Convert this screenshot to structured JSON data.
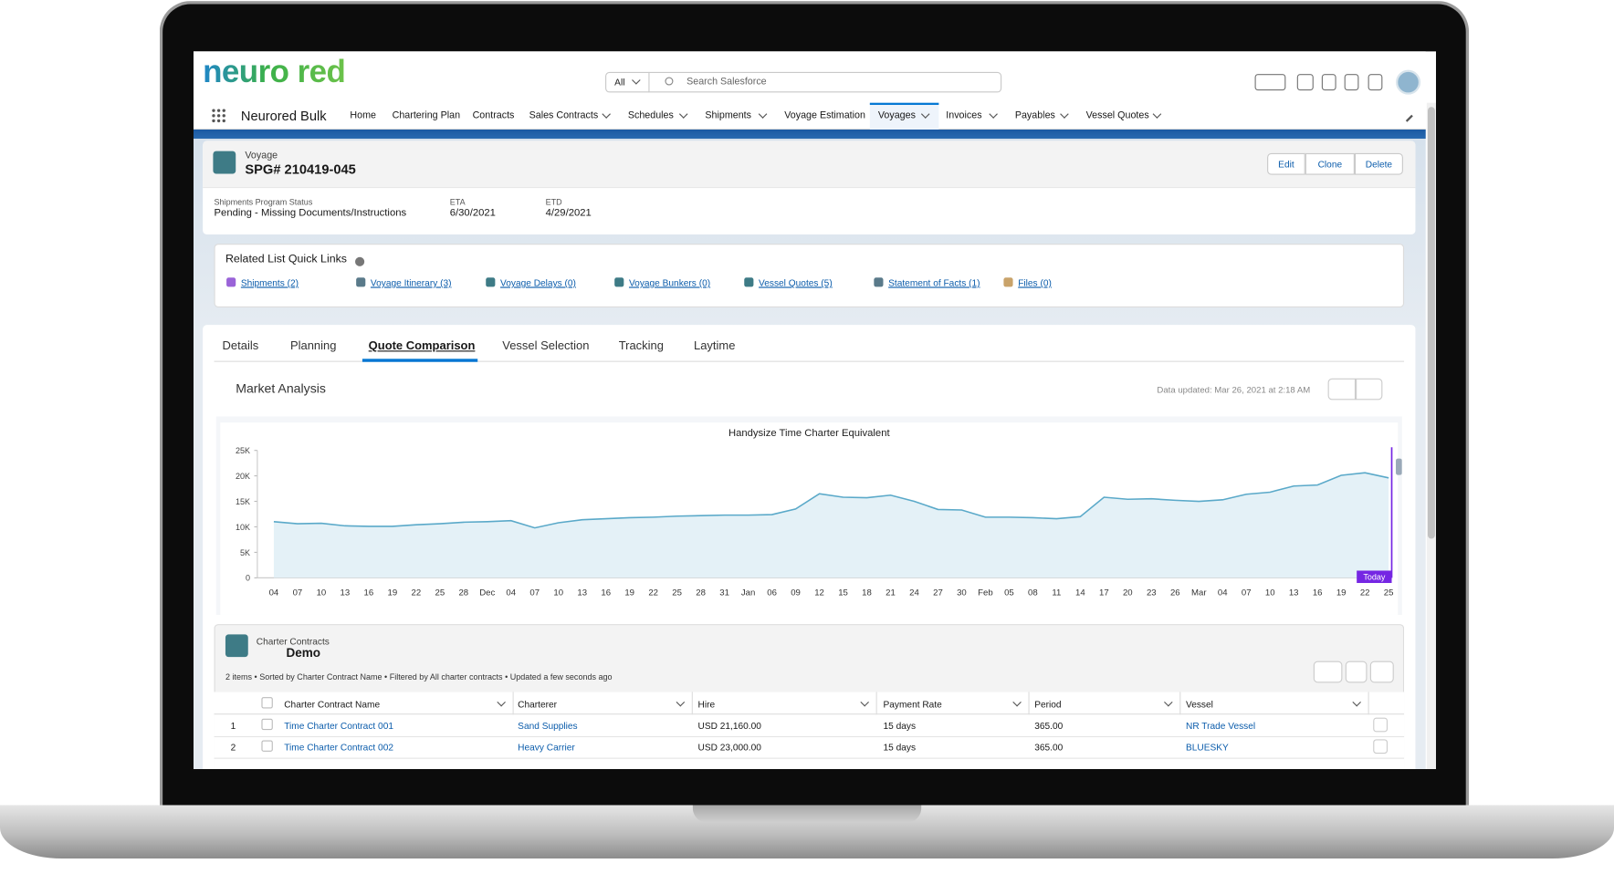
{
  "header": {
    "logo": "neuro red",
    "search_scope": "All",
    "search_placeholder": "Search Salesforce"
  },
  "nav": {
    "app_name": "Neurored Bulk",
    "items": [
      "Home",
      "Chartering Plan",
      "Contracts",
      "Sales Contracts",
      "Schedules",
      "Shipments",
      "Voyage Estimation",
      "Voyages",
      "Invoices",
      "Payables",
      "Vessel Quotes"
    ]
  },
  "record": {
    "object": "Voyage",
    "name": "SPG# 210419-045",
    "actions": [
      "Edit",
      "Clone",
      "Delete"
    ],
    "fields": [
      {
        "label": "Shipments Program Status",
        "value": "Pending - Missing Documents/Instructions"
      },
      {
        "label": "ETA",
        "value": "6/30/2021"
      },
      {
        "label": "ETD",
        "value": "4/29/2021"
      }
    ]
  },
  "quick_links": {
    "title": "Related List Quick Links",
    "links": [
      "Shipments (2)",
      "Voyage Itinerary (3)",
      "Voyage Delays (0)",
      "Voyage Bunkers (0)",
      "Vessel Quotes (5)",
      "Statement of Facts (1)",
      "Files (0)"
    ]
  },
  "tabs": [
    "Details",
    "Planning",
    "Quote Comparison",
    "Vessel Selection",
    "Tracking",
    "Laytime"
  ],
  "market_analysis": {
    "title": "Market Analysis",
    "data_updated": "Data updated: Mar 26, 2021 at 2:18 AM"
  },
  "chart_data": {
    "type": "line",
    "title": "Handysize Time Charter Equivalent",
    "categories": [
      "04",
      "07",
      "10",
      "13",
      "16",
      "19",
      "22",
      "25",
      "28",
      "Dec",
      "04",
      "07",
      "10",
      "13",
      "16",
      "19",
      "22",
      "25",
      "28",
      "31",
      "Jan",
      "06",
      "09",
      "12",
      "15",
      "18",
      "21",
      "24",
      "27",
      "30",
      "Feb",
      "05",
      "08",
      "11",
      "14",
      "17",
      "20",
      "23",
      "26",
      "Mar",
      "04",
      "07",
      "10",
      "13",
      "16",
      "19",
      "22",
      "25"
    ],
    "values": [
      11000,
      10600,
      10700,
      10200,
      10100,
      10100,
      10400,
      10600,
      10900,
      11000,
      11200,
      9800,
      10800,
      11400,
      11600,
      11800,
      11900,
      12100,
      12200,
      12300,
      12300,
      12400,
      13500,
      16500,
      15800,
      15700,
      16200,
      15000,
      13400,
      13300,
      11900,
      11900,
      11800,
      11600,
      12000,
      15800,
      15400,
      15500,
      15200,
      15000,
      15300,
      16400,
      16800,
      18000,
      18200,
      20100,
      20600,
      19600
    ],
    "color": "#5aa9c9",
    "fill": "#e4f1f7",
    "ylim": [
      0,
      25000
    ],
    "yticks": [
      0,
      {
        "value": 5000,
        "label": "5K"
      },
      {
        "value": 10000,
        "label": "10K"
      },
      {
        "value": 15000,
        "label": "15K"
      },
      {
        "value": 20000,
        "label": "20K"
      },
      {
        "value": 25000,
        "label": "25K"
      }
    ],
    "today_label": "Today",
    "today_color": "#7526e3"
  },
  "charter_contracts": {
    "object": "Charter Contracts",
    "name": "Demo",
    "status": "2 items • Sorted by Charter Contract Name • Filtered by All charter contracts • Updated a few seconds ago",
    "columns": [
      "Charter Contract Name",
      "Charterer",
      "Hire",
      "Payment Rate",
      "Period",
      "Vessel"
    ],
    "rows": [
      [
        "1",
        "Time Charter Contract 001",
        "Sand Supplies",
        "USD 21,160.00",
        "15 days",
        "365.00",
        "NR Trade Vessel"
      ],
      [
        "2",
        "Time Charter Contract 002",
        "Heavy Carrier",
        "USD 23,000.00",
        "15 days",
        "365.00",
        "BLUESKY"
      ]
    ]
  }
}
